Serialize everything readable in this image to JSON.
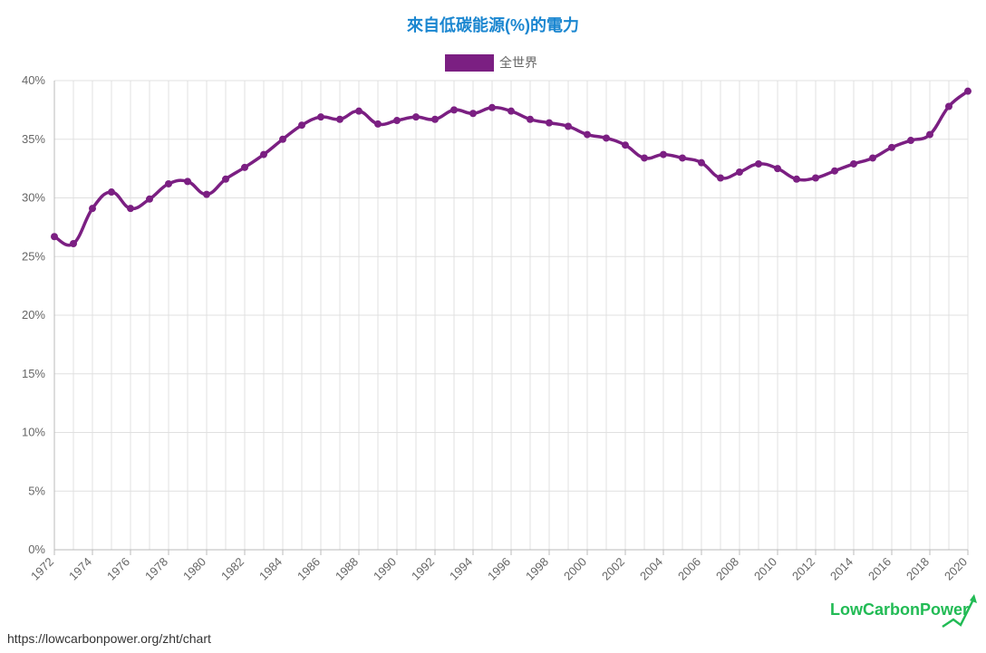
{
  "chart_data": {
    "type": "line",
    "title": "來自低碳能源(%)的電力",
    "legend_position": "top-center",
    "grid": true,
    "x": [
      1972,
      1973,
      1974,
      1975,
      1976,
      1977,
      1978,
      1979,
      1980,
      1981,
      1982,
      1983,
      1984,
      1985,
      1986,
      1987,
      1988,
      1989,
      1990,
      1991,
      1992,
      1993,
      1994,
      1995,
      1996,
      1997,
      1998,
      1999,
      2000,
      2001,
      2002,
      2003,
      2004,
      2005,
      2006,
      2007,
      2008,
      2009,
      2010,
      2011,
      2012,
      2013,
      2014,
      2015,
      2016,
      2017,
      2018,
      2019,
      2020
    ],
    "x_tick_labels": [
      "1972",
      "1974",
      "1976",
      "1978",
      "1980",
      "1982",
      "1984",
      "1986",
      "1988",
      "1990",
      "1992",
      "1994",
      "1996",
      "1998",
      "2000",
      "2002",
      "2004",
      "2006",
      "2008",
      "2010",
      "2012",
      "2014",
      "2016",
      "2018",
      "2020"
    ],
    "y_tick_labels": [
      "0%",
      "5%",
      "10%",
      "15%",
      "20%",
      "25%",
      "30%",
      "35%",
      "40%"
    ],
    "ylim": [
      0,
      40
    ],
    "xlim": [
      1972,
      2020
    ],
    "series": [
      {
        "name": "全世界",
        "color": "#7b1f82",
        "values": [
          26.7,
          26.1,
          29.1,
          30.5,
          29.1,
          29.9,
          31.2,
          31.4,
          30.3,
          31.6,
          32.6,
          33.7,
          35.0,
          36.2,
          36.9,
          36.7,
          37.4,
          36.3,
          36.6,
          36.9,
          36.7,
          37.5,
          37.2,
          37.7,
          37.4,
          36.7,
          36.4,
          36.1,
          35.4,
          35.1,
          34.5,
          33.4,
          33.7,
          33.4,
          33.0,
          31.7,
          32.2,
          32.9,
          32.5,
          31.6,
          31.7,
          32.3,
          32.9,
          33.4,
          34.3,
          34.9,
          35.4,
          37.8,
          39.1
        ]
      }
    ]
  },
  "footer": {
    "source_url": "https://lowcarbonpower.org/zht/chart",
    "logo_text": "LowCarbonPower"
  }
}
